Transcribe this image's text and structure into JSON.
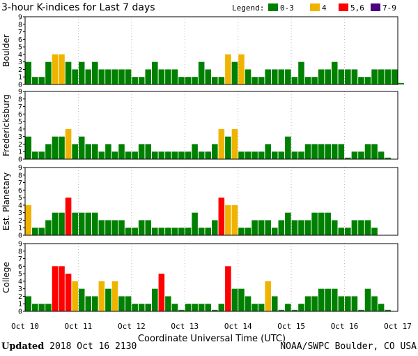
{
  "chart_data": {
    "type": "bar",
    "title": "3-hour K-indices for Last 7 days",
    "legend": {
      "label": "Legend:",
      "entries": [
        {
          "label": "0-3",
          "color": "#008000"
        },
        {
          "label": "4",
          "color": "#f0b400"
        },
        {
          "label": "5,6",
          "color": "#ff0000"
        },
        {
          "label": "7-9",
          "color": "#4b0082"
        }
      ]
    },
    "ylim": [
      0,
      9
    ],
    "yticks": [
      0,
      1,
      2,
      3,
      4,
      5,
      6,
      7,
      8,
      9
    ],
    "xlabel": "Coordinate Universal Time (UTC)",
    "xticks": [
      "Oct 10",
      "Oct 11",
      "Oct 12",
      "Oct 13",
      "Oct 14",
      "Oct 15",
      "Oct 16",
      "Oct 17"
    ],
    "bins_per_day": 8,
    "panels": [
      {
        "name": "Boulder",
        "values": [
          3,
          1,
          1,
          3,
          4,
          4,
          3,
          2,
          3,
          2,
          3,
          2,
          2,
          2,
          2,
          2,
          1,
          1,
          2,
          3,
          2,
          2,
          2,
          1,
          1,
          1,
          3,
          2,
          1,
          1,
          4,
          3,
          4,
          2,
          1,
          1,
          2,
          2,
          2,
          2,
          1,
          3,
          1,
          1,
          2,
          2,
          3,
          2,
          2,
          2,
          1,
          1,
          2,
          2,
          2,
          2,
          0.2
        ]
      },
      {
        "name": "Fredericksburg",
        "values": [
          3,
          1,
          1,
          2,
          3,
          3,
          4,
          2,
          3,
          2,
          2,
          1,
          2,
          1,
          2,
          1,
          1,
          2,
          2,
          1,
          1,
          1,
          1,
          1,
          1,
          2,
          1,
          1,
          2,
          4,
          3,
          4,
          1,
          1,
          1,
          1,
          2,
          1,
          1,
          3,
          1,
          1,
          2,
          2,
          2,
          2,
          2,
          2,
          0.2,
          1,
          1,
          2,
          2,
          1,
          0.2
        ]
      },
      {
        "name": "Est. Planetary",
        "values": [
          4,
          1,
          1,
          2,
          3,
          3,
          5,
          3,
          3,
          3,
          3,
          2,
          2,
          2,
          2,
          1,
          1,
          2,
          2,
          1,
          1,
          1,
          1,
          1,
          1,
          3,
          1,
          1,
          2,
          5,
          4,
          4,
          1,
          1,
          2,
          2,
          2,
          1,
          2,
          3,
          2,
          2,
          2,
          3,
          3,
          3,
          2,
          1,
          1,
          2,
          2,
          2,
          1
        ]
      },
      {
        "name": "College",
        "values": [
          2,
          1,
          1,
          1,
          6,
          6,
          5,
          4,
          3,
          2,
          2,
          4,
          3,
          4,
          2,
          2,
          1,
          1,
          1,
          3,
          5,
          2,
          1,
          0.2,
          1,
          1,
          1,
          1,
          0.2,
          1,
          6,
          3,
          3,
          2,
          1,
          1,
          4,
          2,
          0.2,
          1,
          0.2,
          1,
          2,
          2,
          3,
          3,
          3,
          2,
          2,
          2,
          0.2,
          3,
          2,
          1,
          0.2
        ]
      }
    ]
  },
  "footer": {
    "updated_label": "Updated",
    "updated_value": "2018 Oct 16 2130",
    "source": "NOAA/SWPC Boulder, CO USA"
  }
}
